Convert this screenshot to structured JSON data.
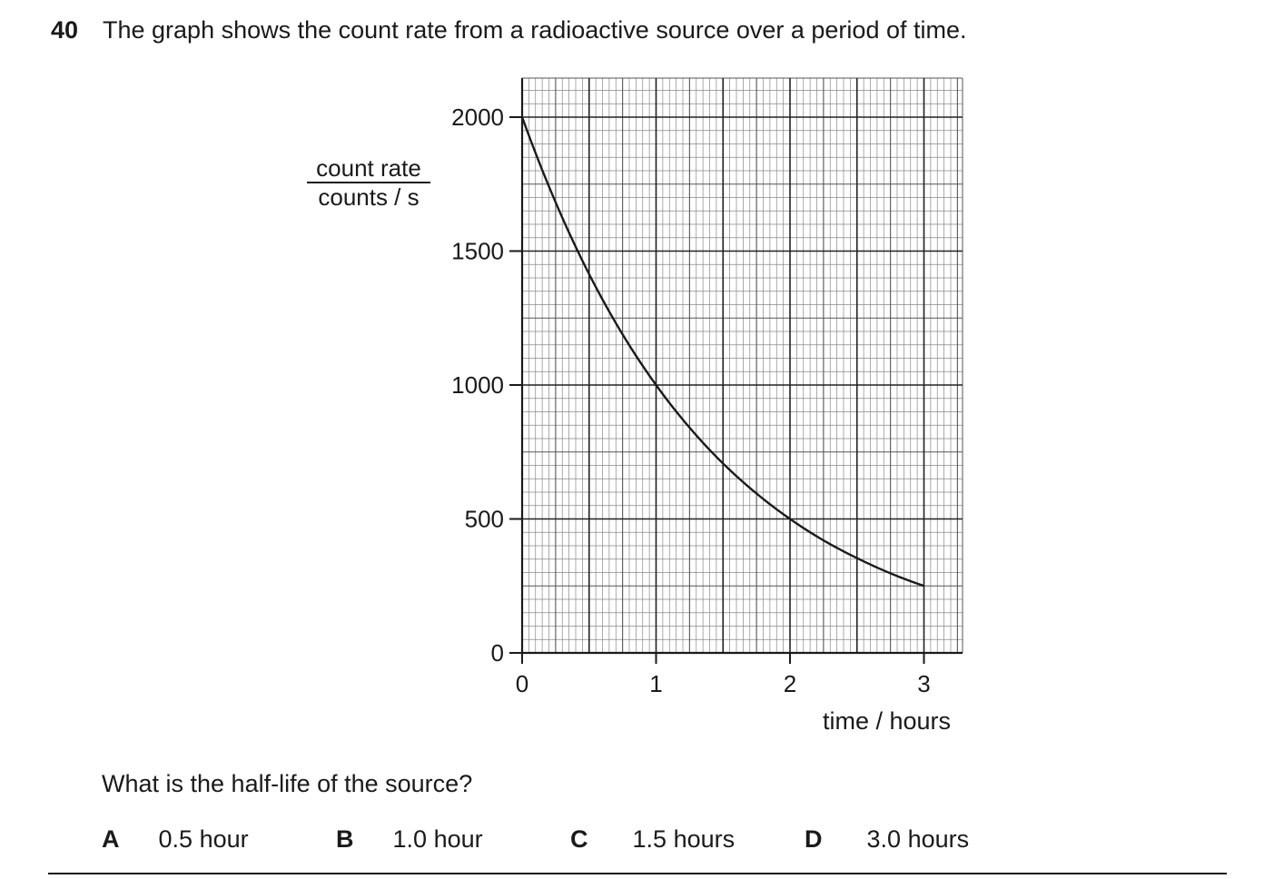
{
  "question": {
    "number": "40",
    "text": "The graph shows the count rate from a radioactive source over a period of time.",
    "prompt": "What is the half-life of the source?",
    "options": [
      {
        "letter": "A",
        "text": "0.5 hour"
      },
      {
        "letter": "B",
        "text": "1.0 hour"
      },
      {
        "letter": "C",
        "text": "1.5 hours"
      },
      {
        "letter": "D",
        "text": "3.0 hours"
      }
    ]
  },
  "chart_data": {
    "type": "line",
    "ylabel_top": "count rate",
    "ylabel_bottom": "counts / s",
    "xlabel": "time / hours",
    "xlim": [
      0,
      3.3
    ],
    "ylim": [
      0,
      2150
    ],
    "xticks": [
      0,
      1,
      2,
      3
    ],
    "xtick_labels": [
      "0",
      "1",
      "2",
      "3"
    ],
    "yticks": [
      0,
      500,
      1000,
      1500,
      2000
    ],
    "ytick_labels": [
      "0",
      "500",
      "1000",
      "1500",
      "2000"
    ],
    "grid": true,
    "series": [
      {
        "x": [
          0,
          0.25,
          0.5,
          0.75,
          1.0,
          1.25,
          1.5,
          1.75,
          2.0,
          2.25,
          2.5,
          2.75,
          3.0
        ],
        "y": [
          2000,
          1682,
          1414,
          1189,
          1000,
          841,
          707,
          595,
          500,
          420,
          354,
          297,
          250
        ]
      }
    ]
  }
}
